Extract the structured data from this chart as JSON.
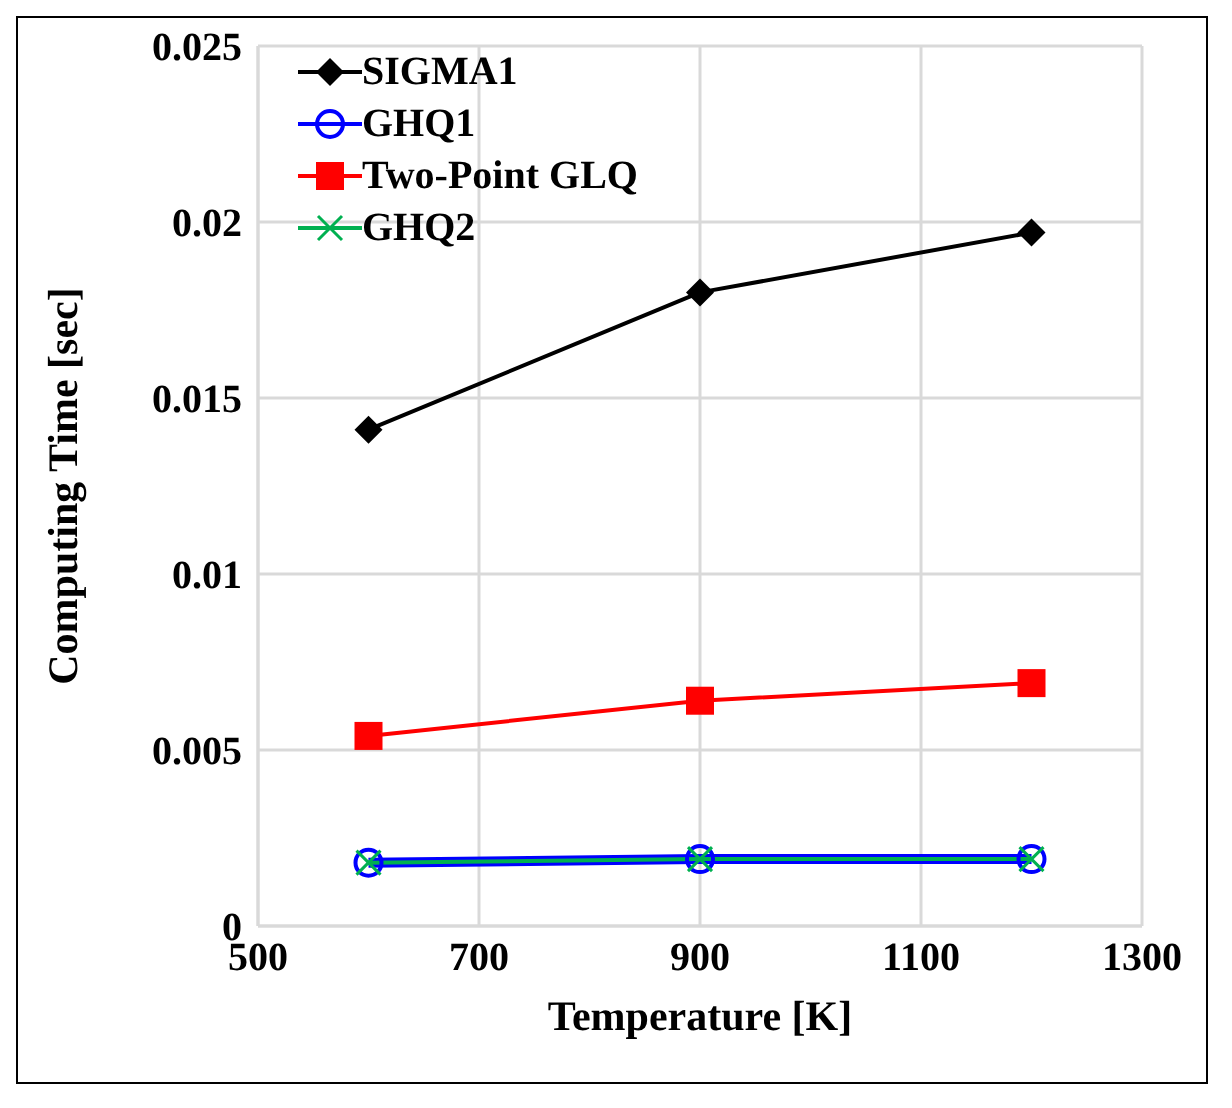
{
  "chart_data": {
    "type": "line",
    "xlabel": "Temperature [K]",
    "ylabel": "Computing Time [sec]",
    "x": [
      600,
      900,
      1200
    ],
    "series": [
      {
        "name": "SIGMA1",
        "color": "#000000",
        "marker": "diamond",
        "values": [
          0.0141,
          0.018,
          0.0197
        ]
      },
      {
        "name": "GHQ1",
        "color": "#0000ff",
        "marker": "circle",
        "values": [
          0.0018,
          0.0019,
          0.0019
        ]
      },
      {
        "name": "Two-Point GLQ",
        "color": "#ff0000",
        "marker": "square",
        "values": [
          0.0054,
          0.0064,
          0.0069
        ]
      },
      {
        "name": "GHQ2",
        "color": "#00b050",
        "marker": "cross",
        "values": [
          0.0018,
          0.0019,
          0.0019
        ]
      }
    ],
    "xlim": [
      500,
      1300
    ],
    "xticks": [
      500,
      700,
      900,
      1100,
      1300
    ],
    "ylim": [
      0,
      0.025
    ],
    "yticks": [
      0,
      0.005,
      0.01,
      0.015,
      0.02,
      0.025
    ],
    "grid": true,
    "legend": "top left"
  }
}
